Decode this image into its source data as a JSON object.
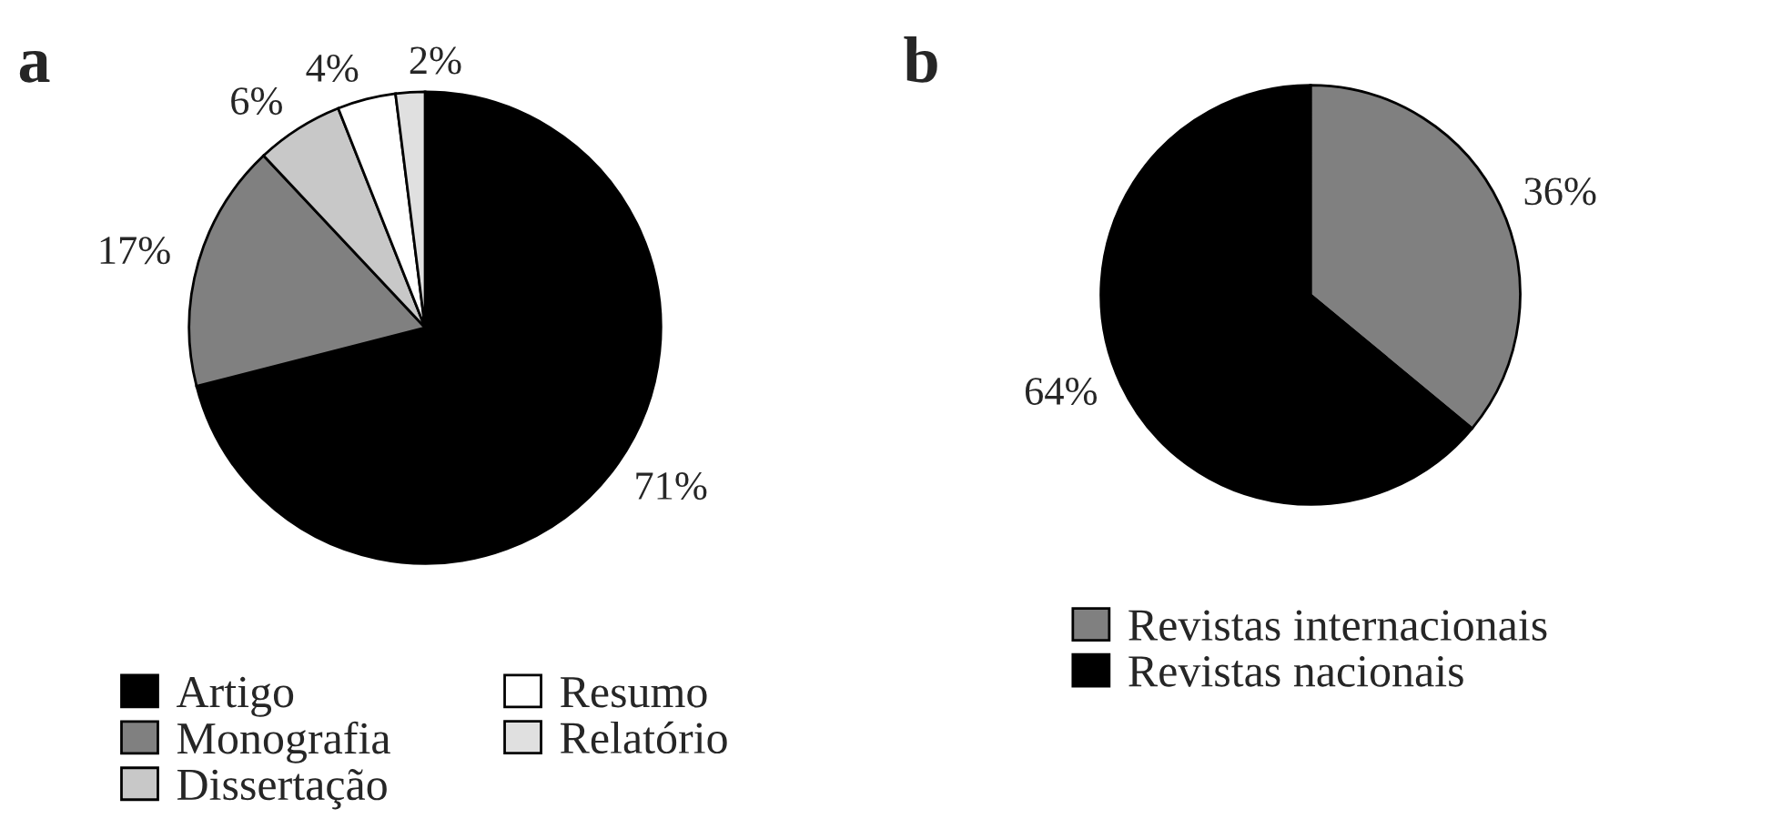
{
  "chart_data": [
    {
      "type": "pie",
      "title": "a",
      "categories": [
        "Artigo",
        "Monografia",
        "Dissertação",
        "Resumo",
        "Relatório"
      ],
      "values": [
        71,
        17,
        6,
        4,
        2
      ],
      "colors": [
        "#000000",
        "#808080",
        "#c8c8c8",
        "#ffffff",
        "#e0e0e0"
      ],
      "value_labels": [
        "71%",
        "17%",
        "6%",
        "4%",
        "2%"
      ],
      "legend": "bottom"
    },
    {
      "type": "pie",
      "title": "b",
      "categories": [
        "Revistas internacionais",
        "Revistas nacionais"
      ],
      "values": [
        36,
        64
      ],
      "colors": [
        "#808080",
        "#000000"
      ],
      "value_labels": [
        "36%",
        "64%"
      ],
      "legend": "bottom"
    }
  ]
}
